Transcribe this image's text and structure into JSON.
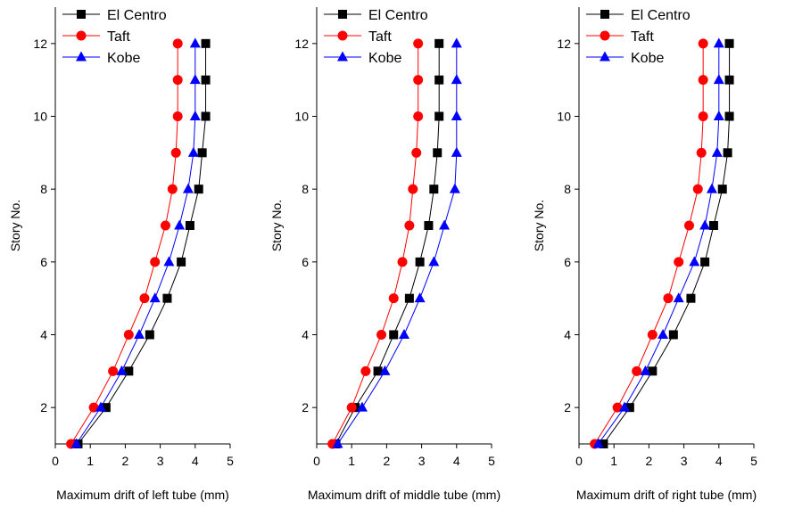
{
  "chart_data": [
    {
      "type": "line",
      "x_label": "Maximum drift of left tube (mm)",
      "y_label": "Story No.",
      "y": [
        1,
        2,
        3,
        4,
        5,
        6,
        7,
        8,
        9,
        10,
        11,
        12
      ],
      "xlim": [
        0,
        5
      ],
      "ylim": [
        1,
        13
      ],
      "xticks": [
        0,
        1,
        2,
        3,
        4,
        5
      ],
      "yticks": [
        2,
        4,
        6,
        8,
        10,
        12
      ],
      "series": [
        {
          "name": "El Centro",
          "color": "#000000",
          "marker": "square",
          "values": [
            0.65,
            1.45,
            2.1,
            2.7,
            3.2,
            3.6,
            3.85,
            4.1,
            4.2,
            4.3,
            4.3,
            4.3
          ]
        },
        {
          "name": "Taft",
          "color": "#ff0000",
          "marker": "circle",
          "values": [
            0.45,
            1.1,
            1.65,
            2.1,
            2.55,
            2.85,
            3.15,
            3.35,
            3.45,
            3.5,
            3.5,
            3.5
          ]
        },
        {
          "name": "Kobe",
          "color": "#0000ff",
          "marker": "triangle",
          "values": [
            0.6,
            1.3,
            1.9,
            2.4,
            2.85,
            3.25,
            3.55,
            3.8,
            3.95,
            4.0,
            4.0,
            4.0
          ]
        }
      ]
    },
    {
      "type": "line",
      "x_label": "Maximum drift of middle tube (mm)",
      "y_label": "Story No.",
      "y": [
        1,
        2,
        3,
        4,
        5,
        6,
        7,
        8,
        9,
        10,
        11,
        12
      ],
      "xlim": [
        0,
        5
      ],
      "ylim": [
        1,
        13
      ],
      "xticks": [
        0,
        1,
        2,
        3,
        4,
        5
      ],
      "yticks": [
        2,
        4,
        6,
        8,
        10,
        12
      ],
      "series": [
        {
          "name": "El Centro",
          "color": "#000000",
          "marker": "square",
          "values": [
            0.55,
            1.1,
            1.75,
            2.2,
            2.65,
            2.95,
            3.2,
            3.35,
            3.45,
            3.5,
            3.5,
            3.5
          ]
        },
        {
          "name": "Taft",
          "color": "#ff0000",
          "marker": "circle",
          "values": [
            0.45,
            1.0,
            1.4,
            1.85,
            2.2,
            2.45,
            2.65,
            2.75,
            2.85,
            2.9,
            2.9,
            2.9
          ]
        },
        {
          "name": "Kobe",
          "color": "#0000ff",
          "marker": "triangle",
          "values": [
            0.6,
            1.3,
            1.95,
            2.5,
            2.95,
            3.35,
            3.65,
            3.95,
            4.0,
            4.0,
            4.0,
            4.0
          ]
        }
      ]
    },
    {
      "type": "line",
      "x_label": "Maximum drift of right tube (mm)",
      "y_label": "Story No.",
      "y": [
        1,
        2,
        3,
        4,
        5,
        6,
        7,
        8,
        9,
        10,
        11,
        12
      ],
      "xlim": [
        0,
        5
      ],
      "ylim": [
        1,
        13
      ],
      "xticks": [
        0,
        1,
        2,
        3,
        4,
        5
      ],
      "yticks": [
        2,
        4,
        6,
        8,
        10,
        12
      ],
      "series": [
        {
          "name": "El Centro",
          "color": "#000000",
          "marker": "square",
          "values": [
            0.7,
            1.45,
            2.1,
            2.7,
            3.2,
            3.6,
            3.85,
            4.1,
            4.25,
            4.3,
            4.3,
            4.3
          ]
        },
        {
          "name": "Taft",
          "color": "#ff0000",
          "marker": "circle",
          "values": [
            0.45,
            1.1,
            1.65,
            2.1,
            2.55,
            2.85,
            3.15,
            3.4,
            3.5,
            3.55,
            3.55,
            3.55
          ]
        },
        {
          "name": "Kobe",
          "color": "#0000ff",
          "marker": "triangle",
          "values": [
            0.55,
            1.3,
            1.9,
            2.4,
            2.85,
            3.3,
            3.6,
            3.8,
            3.95,
            4.0,
            4.0,
            4.0
          ]
        }
      ]
    }
  ]
}
